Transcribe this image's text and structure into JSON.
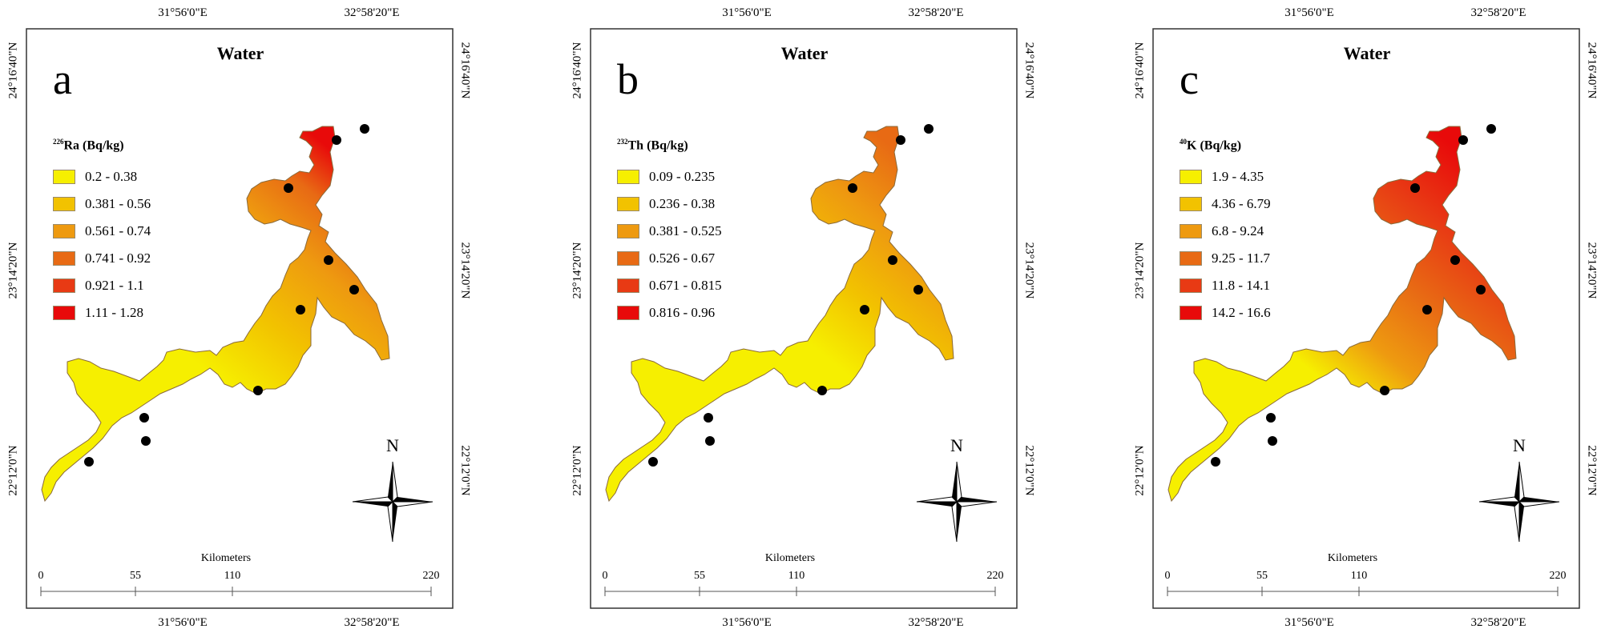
{
  "panels": [
    {
      "letter": "a",
      "title": "Water",
      "legend": {
        "isotope": "226",
        "element": "Ra (Bq/kg)",
        "classes": [
          {
            "label": "0.2 - 0.38",
            "color": "#f6ef00"
          },
          {
            "label": "0.381 - 0.56",
            "color": "#f2c200"
          },
          {
            "label": "0.561 - 0.74",
            "color": "#ee9a10"
          },
          {
            "label": "0.741 - 0.92",
            "color": "#e86a14"
          },
          {
            "label": "0.921 - 1.1",
            "color": "#e83a14"
          },
          {
            "label": "1.11 - 1.28",
            "color": "#e80a0a"
          }
        ]
      },
      "top_coords": [
        "31°56'0\"E",
        "32°58'20\"E"
      ],
      "bottom_coords": [
        "31°56'0\"E",
        "32°58'20\"E"
      ],
      "left_coords": [
        "24°16'40\"N",
        "23°14'20\"N",
        "22°12'0\"N"
      ],
      "right_coords": [
        "24°16'40\"N",
        "23°14'20\"N",
        "22°12'0\"N"
      ],
      "scale": {
        "title": "Kilometers",
        "ticks": [
          "0",
          "55",
          "110",
          "220"
        ]
      },
      "north": "N"
    },
    {
      "letter": "b",
      "title": "Water",
      "legend": {
        "isotope": "232",
        "element": "Th (Bq/kg)",
        "classes": [
          {
            "label": "0.09 - 0.235",
            "color": "#f6ef00"
          },
          {
            "label": "0.236 - 0.38",
            "color": "#f2c200"
          },
          {
            "label": "0.381 - 0.525",
            "color": "#ee9a10"
          },
          {
            "label": "0.526 - 0.67",
            "color": "#e86a14"
          },
          {
            "label": "0.671 - 0.815",
            "color": "#e83a14"
          },
          {
            "label": "0.816 - 0.96",
            "color": "#e80a0a"
          }
        ]
      },
      "top_coords": [
        "31°56'0\"E",
        "32°58'20\"E"
      ],
      "bottom_coords": [
        "31°56'0\"E",
        "32°58'20\"E"
      ],
      "left_coords": [
        "24°16'40\"N",
        "23°14'20\"N",
        "22°12'0\"N"
      ],
      "right_coords": [
        "24°16'40\"N",
        "23°14'20\"N",
        "22°12'0\"N"
      ],
      "scale": {
        "title": "Kilometers",
        "ticks": [
          "0",
          "55",
          "110",
          "220"
        ]
      },
      "north": "N"
    },
    {
      "letter": "c",
      "title": "Water",
      "legend": {
        "isotope": "40",
        "element": "K (Bq/kg)",
        "classes": [
          {
            "label": "1.9 - 4.35",
            "color": "#f6ef00"
          },
          {
            "label": "4.36 - 6.79",
            "color": "#f2c200"
          },
          {
            "label": "6.8 - 9.24",
            "color": "#ee9a10"
          },
          {
            "label": "9.25 - 11.7",
            "color": "#e86a14"
          },
          {
            "label": "11.8 - 14.1",
            "color": "#e83a14"
          },
          {
            "label": "14.2 - 16.6",
            "color": "#e80a0a"
          }
        ]
      },
      "top_coords": [
        "31°56'0\"E",
        "32°58'20\"E"
      ],
      "bottom_coords": [
        "31°56'0\"E",
        "32°58'20\"E"
      ],
      "left_coords": [
        "24°16'40\"N",
        "23°14'20\"N",
        "22°12'0\"N"
      ],
      "right_coords": [
        "24°16'40\"N",
        "23°14'20\"N",
        "22°12'0\"N"
      ],
      "scale": {
        "title": "Kilometers",
        "ticks": [
          "0",
          "55",
          "110",
          "220"
        ]
      },
      "north": "N"
    }
  ]
}
